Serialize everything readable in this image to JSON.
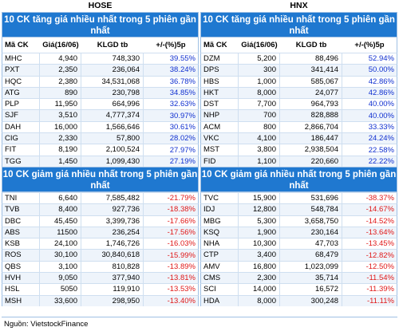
{
  "source": "Nguồn: VietstockFinance",
  "columns": [
    "Mã CK",
    "Giá(16/06)",
    "KLGD tb",
    "+/-(%)5p"
  ],
  "markets": [
    {
      "title": "HOSE",
      "gainers_title": "10 CK tăng giá nhiều nhất trong 5 phiên gần nhất",
      "losers_title": "10 CK giảm giá nhiều nhất trong 5 phiên gần nhất",
      "gainers": [
        [
          "MHC",
          "4,940",
          "748,330",
          "39.55%"
        ],
        [
          "PXT",
          "2,350",
          "236,064",
          "38.24%"
        ],
        [
          "HQC",
          "2,380",
          "34,531,068",
          "36.78%"
        ],
        [
          "ATG",
          "890",
          "230,798",
          "34.85%"
        ],
        [
          "PLP",
          "11,950",
          "664,996",
          "32.63%"
        ],
        [
          "SJF",
          "3,510",
          "4,777,374",
          "30.97%"
        ],
        [
          "DAH",
          "16,000",
          "1,566,646",
          "30.61%"
        ],
        [
          "CIG",
          "2,330",
          "57,800",
          "28.02%"
        ],
        [
          "FIT",
          "8,190",
          "2,100,524",
          "27.97%"
        ],
        [
          "TGG",
          "1,450",
          "1,099,430",
          "27.19%"
        ]
      ],
      "losers": [
        [
          "TNI",
          "6,640",
          "7,585,482",
          "-21.79%"
        ],
        [
          "TVB",
          "8,400",
          "927,736",
          "-18.38%"
        ],
        [
          "DBC",
          "45,450",
          "3,399,736",
          "-17.66%"
        ],
        [
          "ABS",
          "11500",
          "236,254",
          "-17.56%"
        ],
        [
          "KSB",
          "24,100",
          "1,746,726",
          "-16.03%"
        ],
        [
          "ROS",
          "30,100",
          "30,840,618",
          "-15.99%"
        ],
        [
          "QBS",
          "3,100",
          "810,828",
          "-13.89%"
        ],
        [
          "HVH",
          "9,050",
          "377,940",
          "-13.81%"
        ],
        [
          "HSL",
          "5050",
          "119,910",
          "-13.53%"
        ],
        [
          "MSH",
          "33,600",
          "298,950",
          "-13.40%"
        ]
      ]
    },
    {
      "title": "HNX",
      "gainers_title": "10 CK tăng giá nhiều nhất trong 5 phiên gần nhất",
      "losers_title": "10 CK giảm giá nhiều nhất trong 5 phiên gần nhất",
      "gainers": [
        [
          "DZM",
          "5,200",
          "88,496",
          "52.94%"
        ],
        [
          "DPS",
          "300",
          "341,414",
          "50.00%"
        ],
        [
          "HBS",
          "1,000",
          "585,067",
          "42.86%"
        ],
        [
          "HKT",
          "8,000",
          "24,077",
          "42.86%"
        ],
        [
          "DST",
          "7,700",
          "964,793",
          "40.00%"
        ],
        [
          "NHP",
          "700",
          "828,888",
          "40.00%"
        ],
        [
          "ACM",
          "800",
          "2,866,704",
          "33.33%"
        ],
        [
          "VKC",
          "4,100",
          "186,447",
          "24.24%"
        ],
        [
          "MST",
          "3,800",
          "2,938,504",
          "22.58%"
        ],
        [
          "FID",
          "1,100",
          "220,660",
          "22.22%"
        ]
      ],
      "losers": [
        [
          "TVC",
          "15,900",
          "531,696",
          "-38.37%"
        ],
        [
          "IDJ",
          "12,800",
          "548,784",
          "-14.67%"
        ],
        [
          "MBG",
          "5,300",
          "3,658,750",
          "-14.52%"
        ],
        [
          "KSQ",
          "1,900",
          "230,164",
          "-13.64%"
        ],
        [
          "NHA",
          "10,300",
          "47,703",
          "-13.45%"
        ],
        [
          "CTP",
          "3,400",
          "68,479",
          "-12.82%"
        ],
        [
          "AMV",
          "16,800",
          "1,023,099",
          "-12.50%"
        ],
        [
          "CMS",
          "2,300",
          "35,714",
          "-11.54%"
        ],
        [
          "SCI",
          "14,000",
          "16,572",
          "-11.39%"
        ],
        [
          "HDA",
          "8,000",
          "300,248",
          "-11.11%"
        ]
      ]
    }
  ]
}
